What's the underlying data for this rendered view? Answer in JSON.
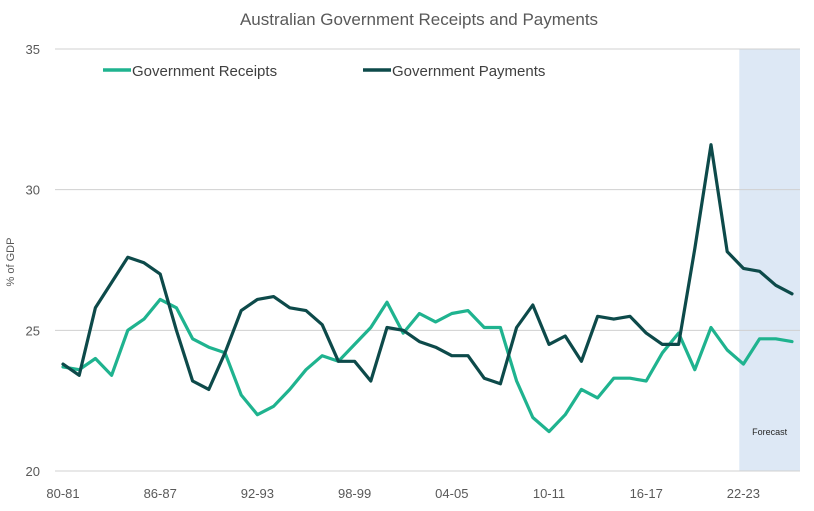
{
  "chart_data": {
    "type": "line",
    "title": "Australian Government Receipts and Payments",
    "ylabel": "% of GDP",
    "ylim": [
      20,
      35
    ],
    "yticks": [
      20,
      25,
      30,
      35
    ],
    "xtick_labels": [
      "80-81",
      "86-87",
      "92-93",
      "98-99",
      "04-05",
      "10-11",
      "16-17",
      "22-23"
    ],
    "x": [
      "80-81",
      "81-82",
      "82-83",
      "83-84",
      "84-85",
      "85-86",
      "86-87",
      "87-88",
      "88-89",
      "89-90",
      "90-91",
      "91-92",
      "92-93",
      "93-94",
      "94-95",
      "95-96",
      "96-97",
      "97-98",
      "98-99",
      "99-00",
      "00-01",
      "01-02",
      "02-03",
      "03-04",
      "04-05",
      "05-06",
      "06-07",
      "07-08",
      "08-09",
      "09-10",
      "10-11",
      "11-12",
      "12-13",
      "13-14",
      "14-15",
      "15-16",
      "16-17",
      "17-18",
      "18-19",
      "19-20",
      "20-21",
      "21-22",
      "22-23",
      "23-24",
      "24-25",
      "25-26"
    ],
    "forecast_start": "22-23",
    "forecast_label": "Forecast",
    "legend_position": "top-left",
    "grid": true,
    "series": [
      {
        "name": "Government Receipts",
        "color": "#1fb38f",
        "values": [
          23.7,
          23.6,
          24.0,
          23.4,
          25.0,
          25.4,
          26.1,
          25.8,
          24.7,
          24.4,
          24.2,
          22.7,
          22.0,
          22.3,
          22.9,
          23.6,
          24.1,
          23.9,
          24.5,
          25.1,
          26.0,
          24.9,
          25.6,
          25.3,
          25.6,
          25.7,
          25.1,
          25.1,
          23.2,
          21.9,
          21.4,
          22.0,
          22.9,
          22.6,
          23.3,
          23.3,
          23.2,
          24.2,
          24.9,
          23.6,
          25.1,
          24.3,
          23.8,
          24.7,
          24.7,
          24.6
        ]
      },
      {
        "name": "Government Payments",
        "color": "#0d4a4a",
        "values": [
          23.8,
          23.4,
          25.8,
          26.7,
          27.6,
          27.4,
          27.0,
          25.0,
          23.2,
          22.9,
          24.2,
          25.7,
          26.1,
          26.2,
          25.8,
          25.7,
          25.2,
          23.9,
          23.9,
          23.2,
          25.1,
          25.0,
          24.6,
          24.4,
          24.1,
          24.1,
          23.3,
          23.1,
          25.1,
          25.9,
          24.5,
          24.8,
          23.9,
          25.5,
          25.4,
          25.5,
          24.9,
          24.5,
          24.5,
          27.9,
          31.6,
          27.8,
          27.2,
          27.1,
          26.6,
          26.3
        ]
      }
    ]
  }
}
